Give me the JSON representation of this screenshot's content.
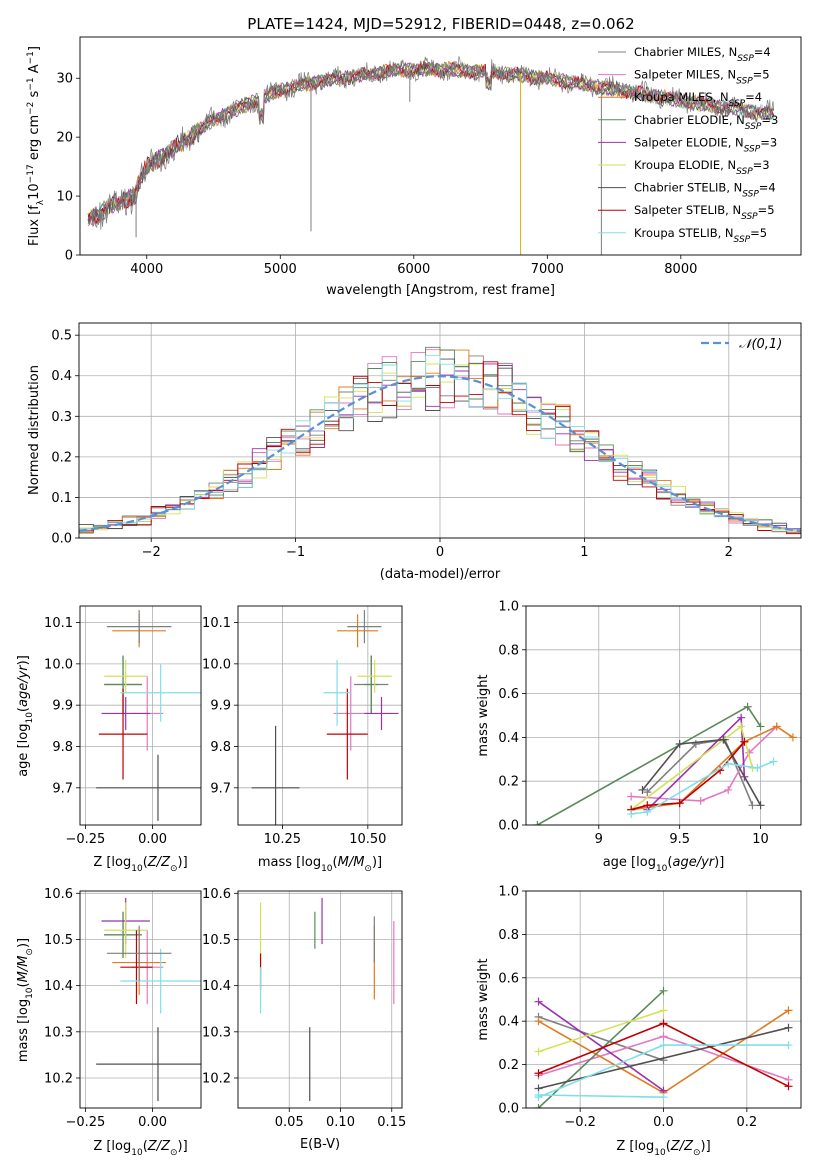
{
  "figure": {
    "title": "PLATE=1424, MJD=52912, FIBERID=0448, z=0.062"
  },
  "series_styles": [
    {
      "name": "Chabrier MILES",
      "sub": "SSP",
      "n": 4,
      "color": "#7f7f7f"
    },
    {
      "name": "Salpeter MILES",
      "sub": "SSP",
      "n": 5,
      "color": "#e377c2"
    },
    {
      "name": "Kroupa MILES",
      "sub": "SSP",
      "n": 4,
      "color": "#e07b1f"
    },
    {
      "name": "Chabrier ELODIE",
      "sub": "SSP",
      "n": 3,
      "color": "#5a8a5a"
    },
    {
      "name": "Salpeter ELODIE",
      "sub": "SSP",
      "n": 3,
      "color": "#9b30b0"
    },
    {
      "name": "Kroupa ELODIE",
      "sub": "SSP",
      "n": 3,
      "color": "#d4e157"
    },
    {
      "name": "Chabrier STELIB",
      "sub": "SSP",
      "n": 4,
      "color": "#505050"
    },
    {
      "name": "Salpeter STELIB",
      "sub": "SSP",
      "n": 5,
      "color": "#c00000"
    },
    {
      "name": "Kroupa STELIB",
      "sub": "SSP",
      "n": 5,
      "color": "#80deea"
    }
  ],
  "chart_data": [
    {
      "id": "spectrum",
      "type": "line",
      "xlabel": "wavelength [Angstrom, rest frame]",
      "ylabel": "Flux [f_λ10^-17 erg cm^-2 s^-1 A^-1]",
      "xlim": [
        3500,
        8900
      ],
      "ylim": [
        0,
        37
      ],
      "xticks": [
        4000,
        5000,
        6000,
        7000,
        8000
      ],
      "yticks": [
        0,
        10,
        20,
        30
      ],
      "legend": "right",
      "continuum": {
        "x": [
          3560,
          3700,
          3900,
          4000,
          4200,
          4500,
          4800,
          5000,
          5300,
          5600,
          5900,
          6200,
          6600,
          7000,
          7400,
          7800,
          8200,
          8500,
          8700
        ],
        "y": [
          6,
          8,
          10,
          15,
          18,
          23,
          26,
          28,
          29.5,
          30.5,
          31.5,
          31.5,
          31,
          30,
          28.5,
          27,
          25.5,
          24.5,
          24
        ]
      },
      "spikes": [
        {
          "x": 5230,
          "y": 4
        },
        {
          "x": 6800,
          "y": 0
        },
        {
          "x": 7405,
          "y": 0
        },
        {
          "x": 5970,
          "y": 26
        },
        {
          "x": 3920,
          "y": 3
        }
      ],
      "note": "spectral noise drawn procedurally"
    },
    {
      "id": "residuals",
      "type": "step",
      "xlabel": "(data-model)/error",
      "ylabel": "Normed distribution",
      "xlim": [
        -2.5,
        2.5
      ],
      "ylim": [
        0,
        0.53
      ],
      "xticks": [
        -2,
        -1,
        0,
        1,
        2
      ],
      "yticks": [
        0,
        0.1,
        0.2,
        0.3,
        0.4,
        0.5
      ],
      "legend": "top-right",
      "legend_label": "𝒩(0,1)",
      "bin_width": 0.1,
      "note": "each series follows the normal density with jitter"
    },
    {
      "id": "age_vs_Z",
      "type": "errorbar",
      "xlabel": "Z [log10(Z/Z☉)]",
      "ylabel": "age [log10(age/yr)]",
      "xlim": [
        -0.27,
        0.18
      ],
      "ylim": [
        9.61,
        10.14
      ],
      "xticks": [
        -0.25,
        0.0
      ],
      "xticklabels": [
        "−0.25",
        "0.00"
      ],
      "yticks": [
        9.7,
        9.8,
        9.9,
        10.0,
        10.1
      ],
      "points": [
        {
          "s": 0,
          "x": -0.11,
          "y": 9.95,
          "xerr": 0.07,
          "yerr": 0.07
        },
        {
          "s": 1,
          "x": -0.02,
          "y": 9.88,
          "xerr": 0.06,
          "yerr": 0.09
        },
        {
          "s": 2,
          "x": -0.05,
          "y": 10.08,
          "xerr": 0.1,
          "yerr": 0.04
        },
        {
          "s": 3,
          "x": -0.11,
          "y": 9.95,
          "xerr": 0.07,
          "yerr": 0.07
        },
        {
          "s": 4,
          "x": -0.1,
          "y": 9.88,
          "xerr": 0.09,
          "yerr": 0.04
        },
        {
          "s": 5,
          "x": -0.1,
          "y": 9.97,
          "xerr": 0.08,
          "yerr": 0.04
        },
        {
          "s": 6,
          "x": 0.02,
          "y": 9.7,
          "xerr": 0.23,
          "yerr": 0.08
        },
        {
          "s": 7,
          "x": -0.11,
          "y": 9.83,
          "xerr": 0.09,
          "yerr": 0.11
        },
        {
          "s": 8,
          "x": 0.03,
          "y": 9.93,
          "xerr": 0.15,
          "yerr": 0.07
        },
        {
          "s": 0,
          "x": -0.05,
          "y": 10.09,
          "xerr": 0.12,
          "yerr": 0.04
        }
      ]
    },
    {
      "id": "age_vs_mass",
      "type": "errorbar",
      "xlabel": "mass [log10(M/M☉)]",
      "ylabel": "",
      "xlim": [
        10.12,
        10.6
      ],
      "ylim": [
        9.61,
        10.14
      ],
      "xticks": [
        10.25,
        10.5
      ],
      "xticklabels": [
        "10.25",
        "10.50"
      ],
      "yticks": [
        9.7,
        9.8,
        9.9,
        10.0,
        10.1
      ],
      "points": [
        {
          "s": 0,
          "x": 10.51,
          "y": 9.95,
          "xerr": 0.05,
          "yerr": 0.07
        },
        {
          "s": 1,
          "x": 10.45,
          "y": 9.88,
          "xerr": 0.05,
          "yerr": 0.09
        },
        {
          "s": 2,
          "x": 10.47,
          "y": 10.08,
          "xerr": 0.06,
          "yerr": 0.04
        },
        {
          "s": 3,
          "x": 10.51,
          "y": 9.95,
          "xerr": 0.02,
          "yerr": 0.07
        },
        {
          "s": 4,
          "x": 10.54,
          "y": 9.88,
          "xerr": 0.05,
          "yerr": 0.04
        },
        {
          "s": 5,
          "x": 10.52,
          "y": 9.97,
          "xerr": 0.05,
          "yerr": 0.04
        },
        {
          "s": 6,
          "x": 10.23,
          "y": 9.7,
          "xerr": 0.07,
          "yerr": 0.15
        },
        {
          "s": 7,
          "x": 10.44,
          "y": 9.83,
          "xerr": 0.06,
          "yerr": 0.11
        },
        {
          "s": 8,
          "x": 10.41,
          "y": 9.93,
          "xerr": 0.04,
          "yerr": 0.08
        },
        {
          "s": 0,
          "x": 10.49,
          "y": 10.09,
          "xerr": 0.05,
          "yerr": 0.04
        }
      ]
    },
    {
      "id": "mass_weight_age",
      "type": "line",
      "xlabel": "age [log10(age/yr)]",
      "ylabel": "mass weight",
      "xlim": [
        8.55,
        10.25
      ],
      "ylim": [
        0,
        1.0
      ],
      "xticks": [
        9.0,
        9.5,
        10.0
      ],
      "yticks": [
        0,
        0.2,
        0.4,
        0.6,
        0.8,
        1.0
      ],
      "series": [
        {
          "s": 0,
          "x": [
            9.3,
            9.6,
            9.78,
            9.95
          ],
          "y": [
            0.15,
            0.37,
            0.39,
            0.09
          ]
        },
        {
          "s": 1,
          "x": [
            9.2,
            9.63,
            9.8,
            9.93,
            10.1
          ],
          "y": [
            0.13,
            0.11,
            0.16,
            0.33,
            0.45
          ]
        },
        {
          "s": 2,
          "x": [
            9.2,
            9.5,
            9.9,
            10.1,
            10.2
          ],
          "y": [
            0.07,
            0.1,
            0.38,
            0.45,
            0.4
          ]
        },
        {
          "s": 3,
          "x": [
            8.62,
            9.92,
            10.0
          ],
          "y": [
            0.0,
            0.54,
            0.45
          ]
        },
        {
          "s": 4,
          "x": [
            9.3,
            9.88,
            9.9
          ],
          "y": [
            0.07,
            0.49,
            0.22
          ]
        },
        {
          "s": 5,
          "x": [
            9.2,
            9.88,
            9.95
          ],
          "y": [
            0.07,
            0.45,
            0.26
          ]
        },
        {
          "s": 6,
          "x": [
            9.27,
            9.5,
            9.77,
            10.0
          ],
          "y": [
            0.16,
            0.37,
            0.39,
            0.09
          ]
        },
        {
          "s": 7,
          "x": [
            9.2,
            9.3,
            9.5,
            9.75,
            9.9
          ],
          "y": [
            0.07,
            0.09,
            0.1,
            0.25,
            0.38
          ]
        },
        {
          "s": 8,
          "x": [
            9.2,
            9.3,
            9.8,
            9.98,
            10.08
          ],
          "y": [
            0.05,
            0.06,
            0.28,
            0.26,
            0.29
          ]
        }
      ]
    },
    {
      "id": "mass_vs_Z",
      "type": "errorbar",
      "xlabel": "Z [log10(Z/Z☉)]",
      "ylabel": "mass [log10(M/M☉)]",
      "xlim": [
        -0.27,
        0.18
      ],
      "ylim": [
        10.135,
        10.605
      ],
      "xticks": [
        -0.25,
        0.0
      ],
      "xticklabels": [
        "−0.25",
        "0.00"
      ],
      "yticks": [
        10.2,
        10.3,
        10.4,
        10.5,
        10.6
      ],
      "points": [
        {
          "s": 0,
          "x": -0.11,
          "y": 10.51,
          "xerr": 0.07,
          "yerr": 0.05
        },
        {
          "s": 1,
          "x": -0.02,
          "y": 10.44,
          "xerr": 0.06,
          "yerr": 0.08
        },
        {
          "s": 2,
          "x": -0.05,
          "y": 10.45,
          "xerr": 0.1,
          "yerr": 0.07
        },
        {
          "s": 3,
          "x": -0.11,
          "y": 10.51,
          "xerr": 0.07,
          "yerr": 0.05
        },
        {
          "s": 4,
          "x": -0.1,
          "y": 10.54,
          "xerr": 0.09,
          "yerr": 0.05
        },
        {
          "s": 5,
          "x": -0.1,
          "y": 10.52,
          "xerr": 0.08,
          "yerr": 0.06
        },
        {
          "s": 6,
          "x": 0.02,
          "y": 10.23,
          "xerr": 0.23,
          "yerr": 0.08
        },
        {
          "s": 7,
          "x": -0.06,
          "y": 10.44,
          "xerr": 0.06,
          "yerr": 0.08
        },
        {
          "s": 8,
          "x": 0.03,
          "y": 10.41,
          "xerr": 0.15,
          "yerr": 0.07
        },
        {
          "s": 0,
          "x": -0.05,
          "y": 10.47,
          "xerr": 0.12,
          "yerr": 0.06
        }
      ]
    },
    {
      "id": "mass_vs_ebv",
      "type": "errorbar",
      "xlabel": "E(B-V)",
      "ylabel": "",
      "xlim": [
        0.0,
        0.16
      ],
      "ylim": [
        10.135,
        10.605
      ],
      "xticks": [
        0.05,
        0.1,
        0.15
      ],
      "xticklabels": [
        "0.05",
        "0.10",
        "0.15"
      ],
      "yticks": [
        10.2,
        10.3,
        10.4,
        10.5,
        10.6
      ],
      "points": [
        {
          "s": 5,
          "x": 0.022,
          "y": 10.5,
          "xerr": 0,
          "yerr": 0.08
        },
        {
          "s": 7,
          "x": 0.022,
          "y": 10.43,
          "xerr": 0,
          "yerr": 0.04
        },
        {
          "s": 8,
          "x": 0.022,
          "y": 10.39,
          "xerr": 0,
          "yerr": 0.05
        },
        {
          "s": 6,
          "x": 0.07,
          "y": 10.23,
          "xerr": 0,
          "yerr": 0.08
        },
        {
          "s": 3,
          "x": 0.075,
          "y": 10.52,
          "xerr": 0,
          "yerr": 0.04
        },
        {
          "s": 4,
          "x": 0.082,
          "y": 10.54,
          "xerr": 0,
          "yerr": 0.05
        },
        {
          "s": 2,
          "x": 0.133,
          "y": 10.45,
          "xerr": 0,
          "yerr": 0.08
        },
        {
          "s": 0,
          "x": 0.133,
          "y": 10.5,
          "xerr": 0,
          "yerr": 0.05
        },
        {
          "s": 1,
          "x": 0.152,
          "y": 10.45,
          "xerr": 0,
          "yerr": 0.09
        }
      ]
    },
    {
      "id": "mass_weight_Z",
      "type": "line",
      "xlabel": "Z [log10(Z/Z☉)]",
      "ylabel": "mass weight",
      "xlim": [
        -0.33,
        0.33
      ],
      "ylim": [
        0,
        1.0
      ],
      "xticks": [
        -0.2,
        0.0,
        0.2
      ],
      "xticklabels": [
        "−0.2",
        "0.0",
        "0.2"
      ],
      "yticks": [
        0,
        0.2,
        0.4,
        0.6,
        0.8,
        1.0
      ],
      "series": [
        {
          "s": 0,
          "x": [
            -0.3,
            0.0
          ],
          "y": [
            0.42,
            0.22
          ]
        },
        {
          "s": 1,
          "x": [
            -0.3,
            0.0,
            0.3
          ],
          "y": [
            0.15,
            0.33,
            0.13
          ]
        },
        {
          "s": 2,
          "x": [
            -0.3,
            0.0,
            0.3
          ],
          "y": [
            0.4,
            0.07,
            0.45
          ]
        },
        {
          "s": 3,
          "x": [
            -0.3,
            0.0
          ],
          "y": [
            0.0,
            0.54
          ]
        },
        {
          "s": 4,
          "x": [
            -0.3,
            0.0
          ],
          "y": [
            0.49,
            0.08
          ]
        },
        {
          "s": 5,
          "x": [
            -0.3,
            0.0
          ],
          "y": [
            0.26,
            0.45
          ]
        },
        {
          "s": 6,
          "x": [
            -0.3,
            0.3
          ],
          "y": [
            0.09,
            0.37
          ]
        },
        {
          "s": 7,
          "x": [
            -0.3,
            0.0,
            0.3
          ],
          "y": [
            0.16,
            0.39,
            0.1
          ]
        },
        {
          "s": 8,
          "x": [
            -0.3,
            0.0,
            0.3
          ],
          "y": [
            0.05,
            0.29,
            0.29
          ]
        },
        {
          "s": 8,
          "x": [
            -0.3,
            0.0
          ],
          "y": [
            0.06,
            0.05
          ]
        }
      ]
    }
  ]
}
